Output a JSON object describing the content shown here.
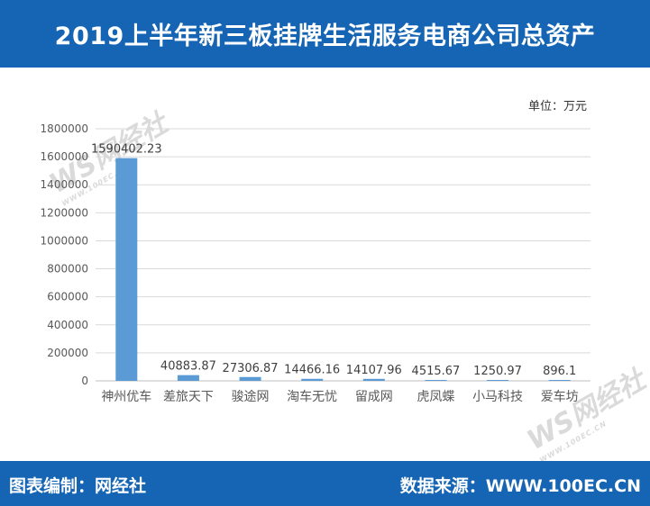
{
  "header": {
    "title": "2019上半年新三板挂牌生活服务电商公司总资产"
  },
  "unit_label": "单位：万元",
  "footer": {
    "left": "图表编制：网经社",
    "right": "数据来源：WWW.100EC.CN"
  },
  "watermark": {
    "brand": "网经社",
    "url": "WWW.100EC.CN",
    "tagline": "网络经济服务平台"
  },
  "colors": {
    "header_bg": "#1565b4",
    "bar": "#5b9bd5",
    "grid": "#d9d9d9",
    "axis_text": "#595959"
  },
  "chart_data": {
    "type": "bar",
    "categories": [
      "神州优车",
      "差旅天下",
      "骏途网",
      "淘车无忧",
      "留成网",
      "虎凤蝶",
      "小马科技",
      "爱车坊"
    ],
    "values": [
      1590402.23,
      40883.87,
      27306.87,
      14466.16,
      14107.96,
      4515.67,
      1250.97,
      896.1
    ],
    "data_labels": [
      "1590402.23",
      "40883.87",
      "27306.87",
      "14466.16",
      "14107.96",
      "4515.67",
      "1250.97",
      "896.1"
    ],
    "y_ticks": [
      "0",
      "200000",
      "400000",
      "600000",
      "800000",
      "1000000",
      "1200000",
      "1400000",
      "1600000",
      "1800000"
    ],
    "ylim": [
      0,
      1800000
    ],
    "grid": true,
    "legend": "none"
  }
}
